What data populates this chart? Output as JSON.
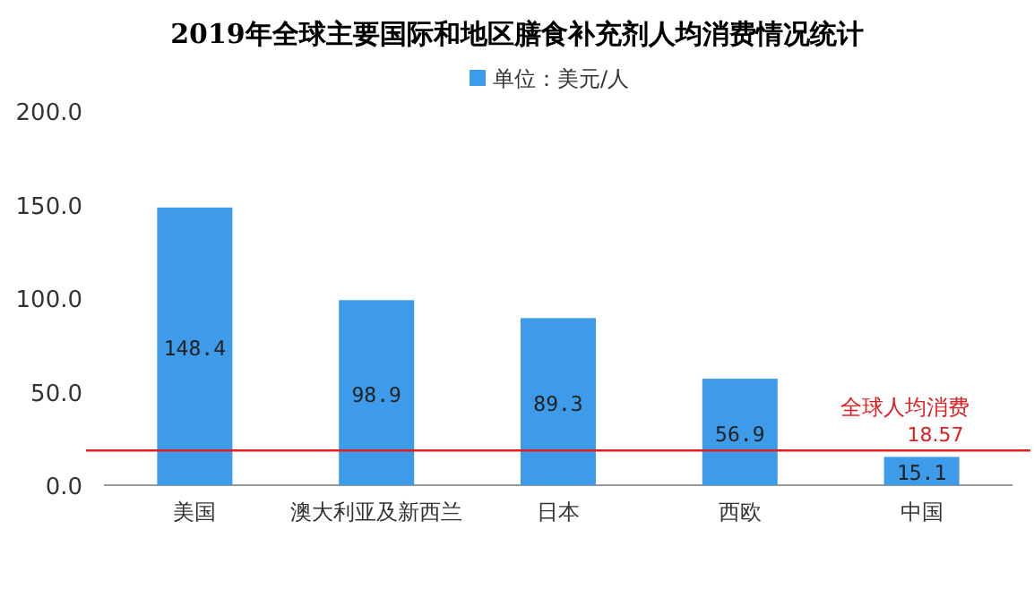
{
  "chart_data": {
    "type": "bar",
    "title": "2019年全球主要国际和地区膳食补充剂人均消费情况统计",
    "categories": [
      "美国",
      "澳大利亚及新西兰",
      "日本",
      "西欧",
      "中国"
    ],
    "series": [
      {
        "name": "单位：美元/人",
        "color": "#3d9be9",
        "values": [
          148.4,
          98.9,
          89.3,
          56.9,
          15.1
        ]
      }
    ],
    "ylim": [
      0,
      200
    ],
    "yticks": [
      {
        "value": 0,
        "label": "0.0"
      },
      {
        "value": 50,
        "label": "50.0"
      },
      {
        "value": 100,
        "label": "100.0"
      },
      {
        "value": 150,
        "label": "150.0"
      },
      {
        "value": 200,
        "label": "200.0"
      }
    ],
    "ref_lines": [
      {
        "axis": "y",
        "value": 18.57,
        "label": "全球人均消费",
        "color": "#e02020"
      }
    ],
    "annotations": [
      {
        "text": "18.57",
        "x": "中国",
        "y": 18.57
      }
    ],
    "data_labels": true,
    "legend": "top",
    "grid": false
  }
}
